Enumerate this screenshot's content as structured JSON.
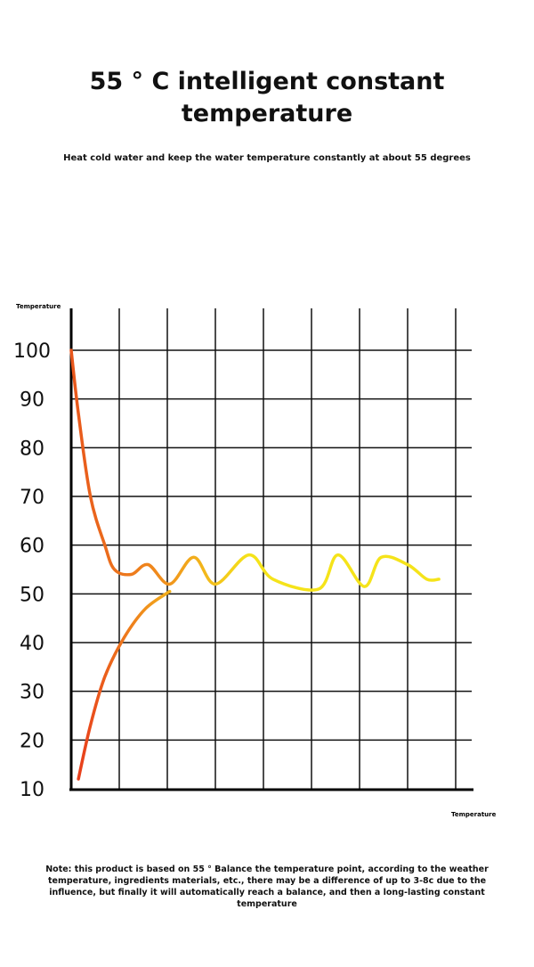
{
  "header": {
    "title_line1": "55 ° C intelligent constant",
    "title_line2": "temperature",
    "subtitle": "Heat cold water and keep the water temperature constantly at about 55 degrees"
  },
  "chart_data": {
    "type": "line",
    "ylabel": "Temperature",
    "xlabel": "Temperature",
    "y_ticks": [
      "100",
      "90",
      "80",
      "70",
      "60",
      "50",
      "40",
      "30",
      "20",
      "10"
    ],
    "ylim": [
      10,
      100
    ],
    "xlim": [
      0,
      8
    ],
    "grid": true,
    "series": [
      {
        "gradient": [
          "#e8561c",
          "#f08c1c",
          "#f5e31a"
        ],
        "x": [
          0,
          0.15,
          0.4,
          0.7,
          0.9,
          1.25,
          1.6,
          2.05,
          2.55,
          3.0,
          3.7,
          4.2,
          5.15,
          5.55,
          6.1,
          6.45,
          7.0,
          7.4,
          7.65
        ],
        "y": [
          100,
          87,
          70,
          60,
          55,
          54,
          56,
          52,
          57.5,
          52,
          58,
          53,
          51,
          58,
          51.5,
          57.5,
          56,
          53,
          53
        ]
      },
      {
        "gradient": [
          "#e8401c",
          "#f0901c",
          "#f5e31a"
        ],
        "x": [
          0.15,
          0.4,
          0.7,
          1.1,
          1.55,
          2.05
        ],
        "y": [
          12,
          23,
          33,
          41,
          47,
          50.5
        ]
      }
    ]
  },
  "footer": {
    "note": "Note: this product is based on 55 ° Balance the temperature point, according to the weather temperature, ingredients materials, etc., there may be a difference of up to 3-8c due to the influence, but finally it will automatically reach a balance, and then a long-lasting constant temperature"
  }
}
